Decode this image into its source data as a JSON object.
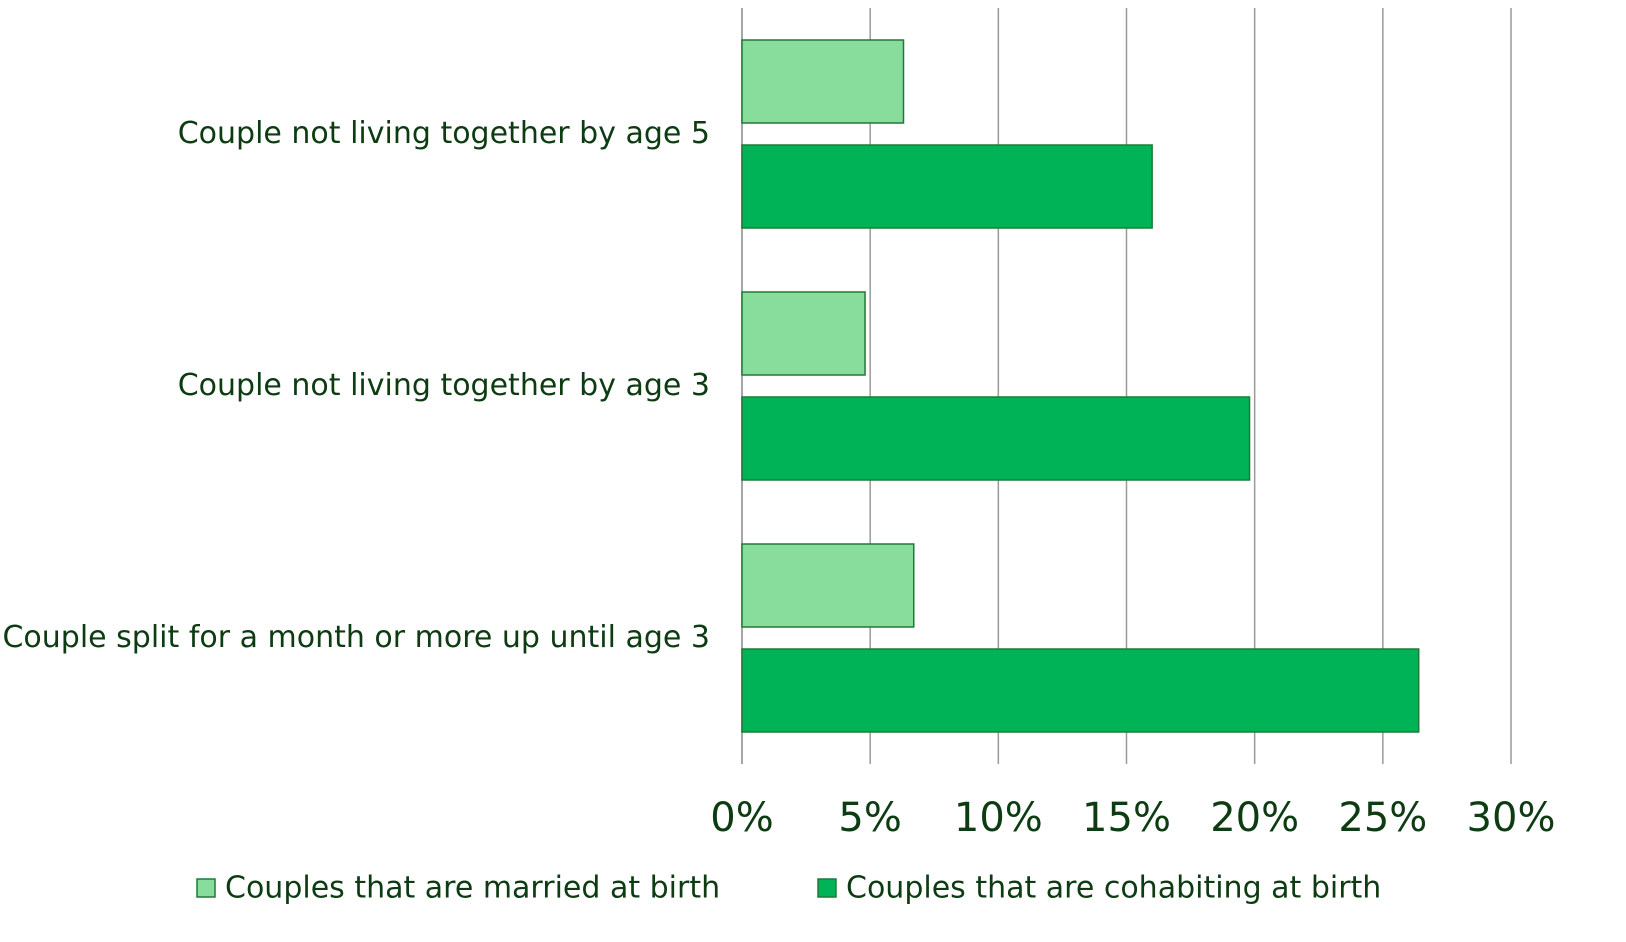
{
  "chart_data": {
    "type": "barh",
    "categories": [
      "Couple not living together by age 5",
      "Couple not living together by age 3",
      "Couple split for a month or more up until age 3"
    ],
    "series": [
      {
        "name": "Couples that are married at birth",
        "color": "#88dc9c",
        "values": [
          6.3,
          4.8,
          6.7
        ]
      },
      {
        "name": "Couples that are cohabiting at birth",
        "color": "#00b356",
        "values": [
          16.0,
          19.8,
          26.4
        ]
      }
    ],
    "xlim": [
      0,
      30
    ],
    "xticks": [
      {
        "value": 0,
        "label": "0%"
      },
      {
        "value": 5,
        "label": "5%"
      },
      {
        "value": 10,
        "label": "10%"
      },
      {
        "value": 15,
        "label": "15%"
      },
      {
        "value": 20,
        "label": "20%"
      },
      {
        "value": 25,
        "label": "25%"
      },
      {
        "value": 30,
        "label": "30%"
      }
    ],
    "grid": true,
    "legend": "bottom"
  }
}
